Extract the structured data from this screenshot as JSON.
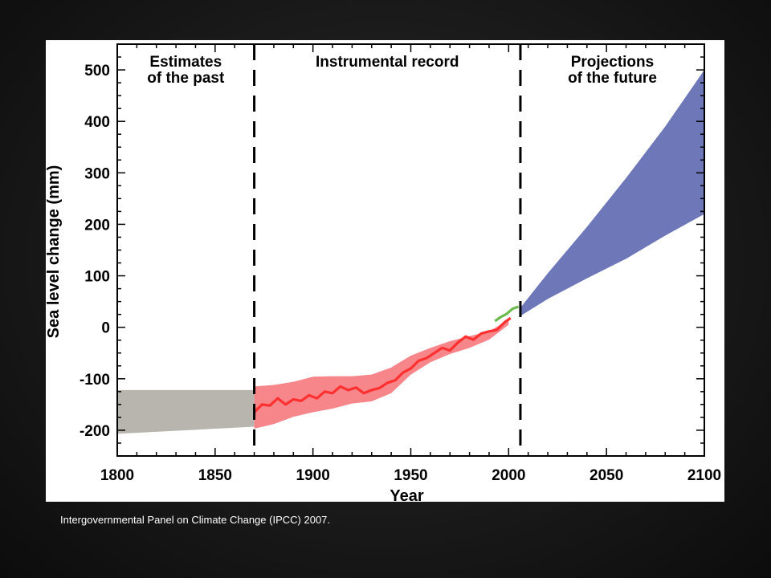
{
  "chart_data": {
    "type": "area",
    "title": "",
    "xlabel": "Year",
    "ylabel": "Sea level change (mm)",
    "xlim": [
      1800,
      2100
    ],
    "ylim": [
      -250,
      550
    ],
    "xticks": [
      1800,
      1850,
      1900,
      1950,
      2000,
      2050,
      2100
    ],
    "yticks": [
      -200,
      -100,
      0,
      100,
      200,
      300,
      400,
      500
    ],
    "grid": false,
    "dividers": [
      1870,
      2006
    ],
    "regions": [
      {
        "label_line1": "Estimates",
        "label_line2": "of the past",
        "x_center": 1835
      },
      {
        "label_line1": "Instrumental record",
        "label_line2": "",
        "x_center": 1938
      },
      {
        "label_line1": "Projections",
        "label_line2": "of the future",
        "x_center": 2053
      }
    ],
    "series": [
      {
        "kind": "band",
        "color": "#b8b4ae",
        "x": [
          1800,
          1870
        ],
        "upper": [
          -122,
          -122
        ],
        "lower": [
          -207,
          -193
        ]
      },
      {
        "kind": "band",
        "color": "#f7868b",
        "x": [
          1870,
          1880,
          1890,
          1900,
          1910,
          1920,
          1930,
          1940,
          1950,
          1960,
          1970,
          1980,
          1990,
          2000
        ],
        "upper": [
          -115,
          -112,
          -106,
          -96,
          -95,
          -95,
          -92,
          -78,
          -55,
          -40,
          -27,
          -17,
          -8,
          15
        ],
        "lower": [
          -197,
          -188,
          -174,
          -165,
          -158,
          -148,
          -144,
          -128,
          -92,
          -68,
          -52,
          -40,
          -24,
          5
        ]
      },
      {
        "kind": "line",
        "color": "#ff3030",
        "x": [
          1870,
          1874,
          1878,
          1882,
          1886,
          1890,
          1894,
          1898,
          1902,
          1906,
          1910,
          1914,
          1918,
          1922,
          1926,
          1930,
          1934,
          1938,
          1942,
          1946,
          1950,
          1954,
          1958,
          1962,
          1966,
          1970,
          1974,
          1978,
          1982,
          1986,
          1990,
          1994,
          1998,
          2001
        ],
        "values": [
          -165,
          -150,
          -152,
          -138,
          -150,
          -140,
          -143,
          -132,
          -138,
          -125,
          -128,
          -115,
          -122,
          -117,
          -128,
          -122,
          -118,
          -108,
          -103,
          -88,
          -80,
          -65,
          -60,
          -50,
          -40,
          -45,
          -30,
          -18,
          -24,
          -12,
          -8,
          -5,
          10,
          18
        ]
      },
      {
        "kind": "line",
        "color": "#6cba4c",
        "x": [
          1993,
          1996,
          1999,
          2002,
          2005
        ],
        "values": [
          12,
          20,
          26,
          36,
          40
        ]
      },
      {
        "kind": "band",
        "color": "#6e78b8",
        "x": [
          2006,
          2020,
          2040,
          2060,
          2080,
          2100
        ],
        "upper": [
          38,
          105,
          195,
          290,
          390,
          500
        ],
        "lower": [
          22,
          55,
          95,
          133,
          178,
          220
        ]
      }
    ]
  },
  "caption": "Intergovernmental Panel on Climate Change (IPCC) 2007."
}
